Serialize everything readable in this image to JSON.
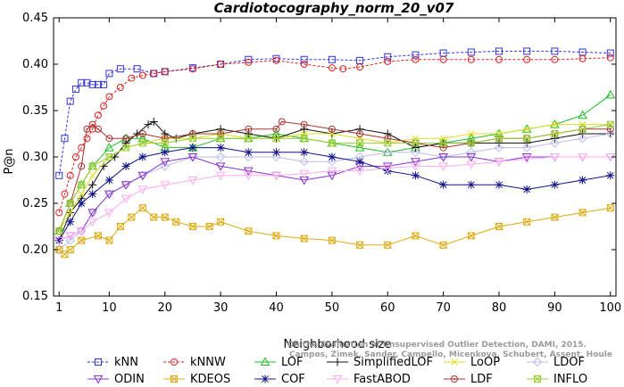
{
  "chart_data": {
    "type": "line",
    "title": "Cardiotocography_norm_20_v07",
    "xlabel": "Neighborhood size",
    "ylabel": "P@n",
    "xlim": [
      0,
      101
    ],
    "ylim": [
      0.15,
      0.45
    ],
    "xticks": [
      1,
      10,
      20,
      30,
      40,
      50,
      60,
      70,
      80,
      90,
      100
    ],
    "yticks": [
      0.15,
      0.2,
      0.25,
      0.3,
      0.35,
      0.4,
      0.45
    ],
    "ytick_labels": [
      "0.15",
      "0.20",
      "0.25",
      "0.30",
      "0.35",
      "0.40",
      "0.45"
    ],
    "grid": false,
    "legend_position": "bottom",
    "watermark": [
      "Campos, Zimek, Sander, Campello, Micenkova, Schubert, Assent, Houle",
      "On the Evaluation of Unsupervised Outlier Detection, DAMI, 2015."
    ],
    "series": [
      {
        "name": "kNN",
        "color": "#3333dd",
        "marker": "square",
        "x": [
          1,
          2,
          3,
          4,
          5,
          6,
          7,
          8,
          9,
          10,
          12,
          15,
          18,
          20,
          25,
          30,
          35,
          40,
          45,
          50,
          55,
          60,
          65,
          70,
          75,
          80,
          85,
          90,
          95,
          100
        ],
        "y": [
          0.28,
          0.32,
          0.36,
          0.373,
          0.38,
          0.38,
          0.378,
          0.378,
          0.378,
          0.39,
          0.395,
          0.395,
          0.39,
          0.392,
          0.396,
          0.4,
          0.405,
          0.406,
          0.405,
          0.405,
          0.404,
          0.408,
          0.41,
          0.412,
          0.413,
          0.414,
          0.414,
          0.414,
          0.413,
          0.412
        ]
      },
      {
        "name": "kNNW",
        "color": "#dd2222",
        "marker": "circle",
        "x": [
          1,
          2,
          3,
          4,
          5,
          6,
          7,
          8,
          9,
          10,
          12,
          14,
          16,
          18,
          20,
          25,
          30,
          35,
          40,
          45,
          50,
          52,
          55,
          60,
          65,
          70,
          75,
          80,
          85,
          90,
          95,
          100
        ],
        "y": [
          0.24,
          0.26,
          0.28,
          0.3,
          0.31,
          0.32,
          0.33,
          0.345,
          0.355,
          0.365,
          0.375,
          0.385,
          0.388,
          0.39,
          0.392,
          0.395,
          0.4,
          0.402,
          0.404,
          0.4,
          0.396,
          0.395,
          0.397,
          0.403,
          0.405,
          0.405,
          0.405,
          0.405,
          0.405,
          0.405,
          0.406,
          0.407
        ]
      },
      {
        "name": "LOF",
        "color": "#22bb22",
        "marker": "triangle-up",
        "x": [
          1,
          3,
          5,
          7,
          10,
          13,
          16,
          20,
          25,
          30,
          35,
          40,
          45,
          50,
          55,
          60,
          65,
          70,
          75,
          80,
          85,
          90,
          95,
          100
        ],
        "y": [
          0.22,
          0.25,
          0.27,
          0.29,
          0.31,
          0.32,
          0.32,
          0.31,
          0.31,
          0.32,
          0.32,
          0.325,
          0.32,
          0.315,
          0.31,
          0.305,
          0.31,
          0.315,
          0.32,
          0.325,
          0.33,
          0.335,
          0.345,
          0.367
        ]
      },
      {
        "name": "SimplifiedLOF",
        "color": "#111111",
        "marker": "plus",
        "x": [
          1,
          3,
          5,
          7,
          9,
          11,
          13,
          15,
          17,
          18,
          20,
          22,
          25,
          30,
          35,
          40,
          45,
          50,
          55,
          60,
          65,
          70,
          75,
          80,
          85,
          90,
          95,
          100
        ],
        "y": [
          0.21,
          0.24,
          0.255,
          0.27,
          0.29,
          0.3,
          0.315,
          0.325,
          0.335,
          0.338,
          0.325,
          0.32,
          0.325,
          0.33,
          0.325,
          0.32,
          0.33,
          0.325,
          0.33,
          0.325,
          0.31,
          0.315,
          0.315,
          0.315,
          0.315,
          0.32,
          0.325,
          0.325
        ]
      },
      {
        "name": "LoOP",
        "color": "#dddd22",
        "marker": "x",
        "x": [
          1,
          3,
          5,
          7,
          10,
          13,
          16,
          20,
          25,
          30,
          35,
          40,
          45,
          50,
          55,
          60,
          65,
          70,
          75,
          80,
          85,
          90,
          95,
          100
        ],
        "y": [
          0.22,
          0.24,
          0.26,
          0.28,
          0.3,
          0.31,
          0.315,
          0.32,
          0.32,
          0.325,
          0.32,
          0.32,
          0.325,
          0.325,
          0.32,
          0.315,
          0.32,
          0.32,
          0.325,
          0.325,
          0.33,
          0.335,
          0.335,
          0.335
        ]
      },
      {
        "name": "LDOF",
        "color": "#bbbbee",
        "marker": "diamond",
        "x": [
          1,
          3,
          5,
          7,
          10,
          13,
          16,
          20,
          25,
          30,
          35,
          40,
          45,
          50,
          55,
          60,
          65,
          70,
          75,
          80,
          85,
          90,
          95,
          100
        ],
        "y": [
          0.2,
          0.21,
          0.22,
          0.24,
          0.26,
          0.27,
          0.28,
          0.29,
          0.3,
          0.3,
          0.3,
          0.3,
          0.295,
          0.295,
          0.3,
          0.305,
          0.305,
          0.3,
          0.305,
          0.31,
          0.31,
          0.315,
          0.32,
          0.325
        ]
      },
      {
        "name": "ODIN",
        "color": "#8833cc",
        "marker": "triangle-down",
        "x": [
          1,
          3,
          5,
          7,
          10,
          13,
          16,
          20,
          25,
          30,
          35,
          40,
          45,
          50,
          55,
          60,
          65,
          70,
          75,
          80,
          85,
          90,
          95,
          100
        ],
        "y": [
          0.21,
          0.215,
          0.22,
          0.24,
          0.26,
          0.27,
          0.28,
          0.295,
          0.3,
          0.29,
          0.285,
          0.28,
          0.275,
          0.28,
          0.29,
          0.29,
          0.295,
          0.3,
          0.3,
          0.295,
          0.3,
          0.3,
          0.3,
          0.3
        ]
      },
      {
        "name": "KDEOS",
        "color": "#ddaa11",
        "marker": "square-x",
        "x": [
          1,
          2,
          3,
          5,
          8,
          10,
          12,
          14,
          16,
          18,
          20,
          22,
          25,
          28,
          30,
          35,
          40,
          45,
          50,
          55,
          60,
          65,
          70,
          75,
          80,
          85,
          90,
          95,
          100
        ],
        "y": [
          0.2,
          0.195,
          0.2,
          0.21,
          0.215,
          0.21,
          0.225,
          0.235,
          0.245,
          0.235,
          0.235,
          0.23,
          0.225,
          0.225,
          0.23,
          0.22,
          0.215,
          0.212,
          0.21,
          0.205,
          0.205,
          0.215,
          0.205,
          0.215,
          0.225,
          0.23,
          0.235,
          0.24,
          0.245
        ]
      },
      {
        "name": "COF",
        "color": "#111188",
        "marker": "star",
        "x": [
          1,
          3,
          5,
          7,
          10,
          13,
          16,
          20,
          25,
          30,
          35,
          40,
          45,
          50,
          55,
          60,
          65,
          70,
          75,
          80,
          85,
          90,
          95,
          100
        ],
        "y": [
          0.21,
          0.23,
          0.25,
          0.26,
          0.275,
          0.29,
          0.3,
          0.305,
          0.31,
          0.31,
          0.305,
          0.305,
          0.305,
          0.3,
          0.295,
          0.285,
          0.28,
          0.27,
          0.27,
          0.27,
          0.265,
          0.27,
          0.275,
          0.28
        ]
      },
      {
        "name": "FastABOD",
        "color": "#ffaaee",
        "marker": "triangle-down-open",
        "x": [
          1,
          3,
          5,
          7,
          10,
          13,
          16,
          20,
          25,
          30,
          35,
          40,
          45,
          50,
          55,
          60,
          65,
          70,
          75,
          80,
          85,
          90,
          95,
          100
        ],
        "y": [
          0.21,
          0.215,
          0.22,
          0.23,
          0.24,
          0.255,
          0.265,
          0.27,
          0.275,
          0.28,
          0.28,
          0.28,
          0.282,
          0.285,
          0.285,
          0.288,
          0.29,
          0.29,
          0.292,
          0.295,
          0.298,
          0.3,
          0.3,
          0.3
        ]
      },
      {
        "name": "LDF",
        "color": "#aa3333",
        "marker": "circle-dot",
        "x": [
          1,
          3,
          5,
          6,
          7,
          8,
          10,
          13,
          16,
          20,
          25,
          30,
          35,
          40,
          41,
          45,
          50,
          55,
          60,
          65,
          70,
          75,
          80,
          85,
          90,
          95,
          100
        ],
        "y": [
          0.22,
          0.25,
          0.29,
          0.33,
          0.335,
          0.33,
          0.32,
          0.32,
          0.325,
          0.32,
          0.325,
          0.325,
          0.33,
          0.33,
          0.338,
          0.335,
          0.33,
          0.325,
          0.32,
          0.315,
          0.31,
          0.315,
          0.32,
          0.32,
          0.325,
          0.33,
          0.33
        ]
      },
      {
        "name": "INFLO",
        "color": "#99cc33",
        "marker": "square-x2",
        "x": [
          1,
          3,
          5,
          7,
          10,
          13,
          16,
          20,
          25,
          30,
          35,
          40,
          45,
          50,
          55,
          60,
          65,
          70,
          75,
          80,
          85,
          90,
          95,
          100
        ],
        "y": [
          0.22,
          0.25,
          0.27,
          0.29,
          0.3,
          0.31,
          0.315,
          0.315,
          0.32,
          0.32,
          0.32,
          0.32,
          0.32,
          0.315,
          0.315,
          0.315,
          0.315,
          0.315,
          0.315,
          0.32,
          0.32,
          0.325,
          0.33,
          0.335
        ]
      }
    ]
  }
}
